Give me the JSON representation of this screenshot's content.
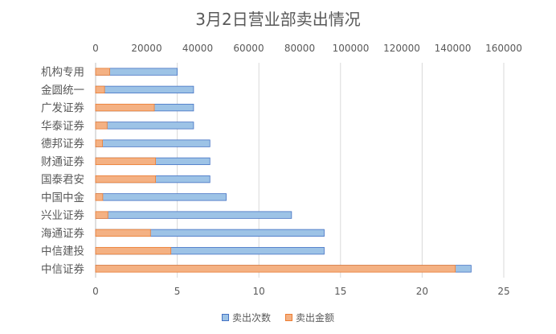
{
  "chart_data": {
    "type": "bar",
    "orientation": "horizontal",
    "title": "3月2日营业部卖出情况",
    "categories": [
      "机构专用",
      "金圆统一",
      "广发证券",
      "华泰证券",
      "德邦证券",
      "财通证券",
      "国泰君安",
      "中国中金",
      "兴业证券",
      "海通证券",
      "中信建投",
      "中信证券"
    ],
    "series": [
      {
        "name": "卖出次数",
        "axis": "bottom",
        "color": "#9DC3E6",
        "stroke": "#4472C4",
        "values": [
          5,
          6,
          6,
          6,
          7,
          7,
          7,
          8,
          12,
          14,
          14,
          23
        ]
      },
      {
        "name": "卖出金额",
        "axis": "top",
        "color": "#F4B183",
        "stroke": "#ED7D31",
        "values": [
          5500,
          3500,
          23000,
          4500,
          2700,
          23500,
          23500,
          2800,
          4800,
          21500,
          29500,
          141000
        ]
      }
    ],
    "bottom_axis": {
      "min": 0,
      "max": 25,
      "ticks": [
        0,
        5,
        10,
        15,
        20,
        25
      ]
    },
    "top_axis": {
      "min": 0,
      "max": 160000,
      "ticks": [
        0,
        20000,
        40000,
        60000,
        80000,
        100000,
        120000,
        140000,
        160000
      ]
    },
    "grid": true,
    "legend_position": "bottom"
  }
}
